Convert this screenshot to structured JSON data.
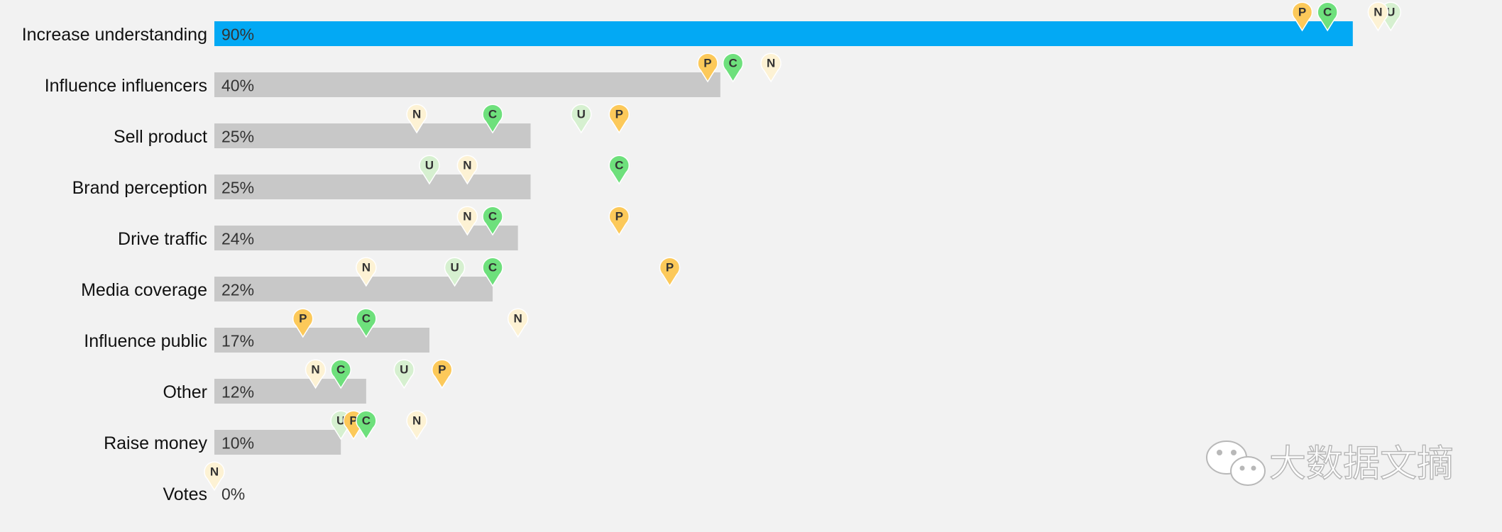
{
  "chart_data": {
    "type": "bar",
    "categories": [
      "Increase understanding",
      "Influence influencers",
      "Sell product",
      "Brand perception",
      "Drive traffic",
      "Media coverage",
      "Influence public",
      "Other",
      "Raise money",
      "Votes"
    ],
    "values": [
      90,
      40,
      25,
      25,
      24,
      22,
      17,
      12,
      10,
      0
    ],
    "value_labels": [
      "90%",
      "40%",
      "25%",
      "25%",
      "24%",
      "22%",
      "17%",
      "12%",
      "10%",
      "0%"
    ],
    "colors": [
      "#03a9f4",
      "#c8c8c8",
      "#c8c8c8",
      "#c8c8c8",
      "#c8c8c8",
      "#c8c8c8",
      "#c8c8c8",
      "#c8c8c8",
      "#c8c8c8",
      "#c8c8c8"
    ],
    "xlim": [
      0,
      100
    ],
    "series": [
      {
        "name": "U",
        "color": "#d6f0d0",
        "values": [
          93,
          null,
          29,
          17,
          null,
          19,
          null,
          15,
          10,
          null
        ]
      },
      {
        "name": "N",
        "color": "#fdf2d4",
        "values": [
          92,
          44,
          16,
          20,
          20,
          12,
          24,
          8,
          16,
          0
        ]
      },
      {
        "name": "P",
        "color": "#fcc95a",
        "values": [
          86,
          39,
          32,
          32,
          32,
          36,
          7,
          18,
          11,
          null
        ]
      },
      {
        "name": "C",
        "color": "#6ee07c",
        "values": [
          88,
          41,
          22,
          32,
          22,
          22,
          12,
          10,
          12,
          null
        ]
      }
    ],
    "watermark": "大数据文摘"
  }
}
